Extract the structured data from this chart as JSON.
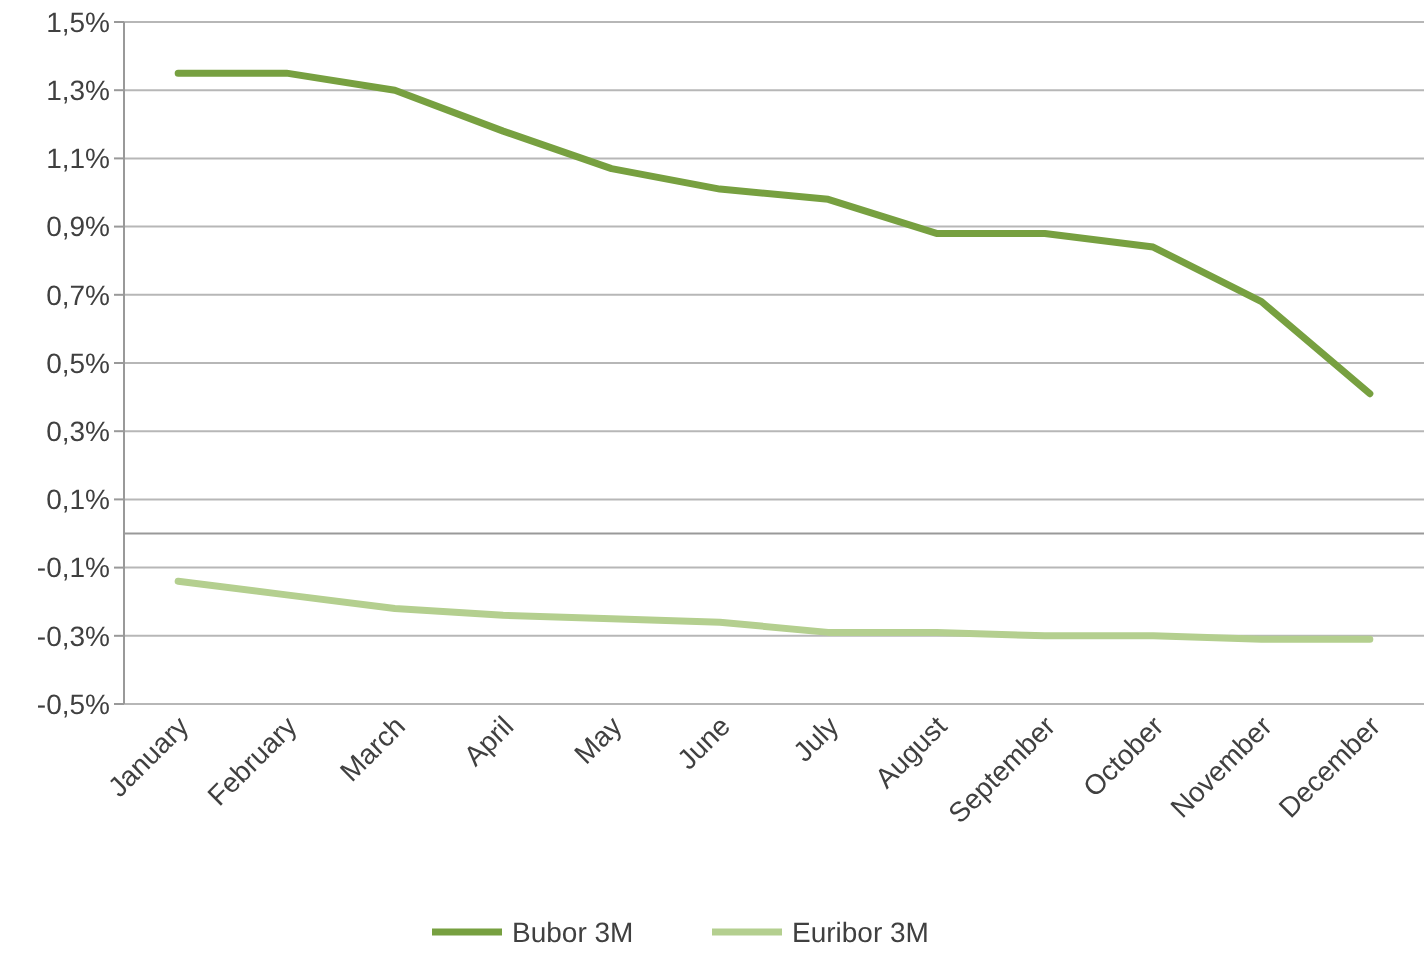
{
  "chart_data": {
    "type": "line",
    "categories": [
      "January",
      "February",
      "March",
      "April",
      "May",
      "June",
      "July",
      "August",
      "September",
      "October",
      "November",
      "December"
    ],
    "series": [
      {
        "name": "Bubor 3M",
        "color": "#77a040",
        "values": [
          1.35,
          1.35,
          1.3,
          1.18,
          1.07,
          1.01,
          0.98,
          0.88,
          0.88,
          0.84,
          0.68,
          0.41
        ]
      },
      {
        "name": "Euribor 3M",
        "color": "#b4cf8f",
        "values": [
          -0.14,
          -0.18,
          -0.22,
          -0.24,
          -0.25,
          -0.26,
          -0.29,
          -0.29,
          -0.3,
          -0.3,
          -0.31,
          -0.31
        ]
      }
    ],
    "ylim": [
      -0.5,
      1.5
    ],
    "yticks": [
      {
        "value": -0.5,
        "label": "-0,5%"
      },
      {
        "value": -0.3,
        "label": "-0,3%"
      },
      {
        "value": -0.1,
        "label": "-0,1%"
      },
      {
        "value": 0.1,
        "label": "0,1%"
      },
      {
        "value": 0.3,
        "label": "0,3%"
      },
      {
        "value": 0.5,
        "label": "0,5%"
      },
      {
        "value": 0.7,
        "label": "0,7%"
      },
      {
        "value": 0.9,
        "label": "0,9%"
      },
      {
        "value": 1.1,
        "label": "1,1%"
      },
      {
        "value": 1.3,
        "label": "1,3%"
      },
      {
        "value": 1.5,
        "label": "1,5%"
      }
    ],
    "grid": "y",
    "legend": "bottom",
    "marker": "none",
    "line_style": "solid"
  }
}
